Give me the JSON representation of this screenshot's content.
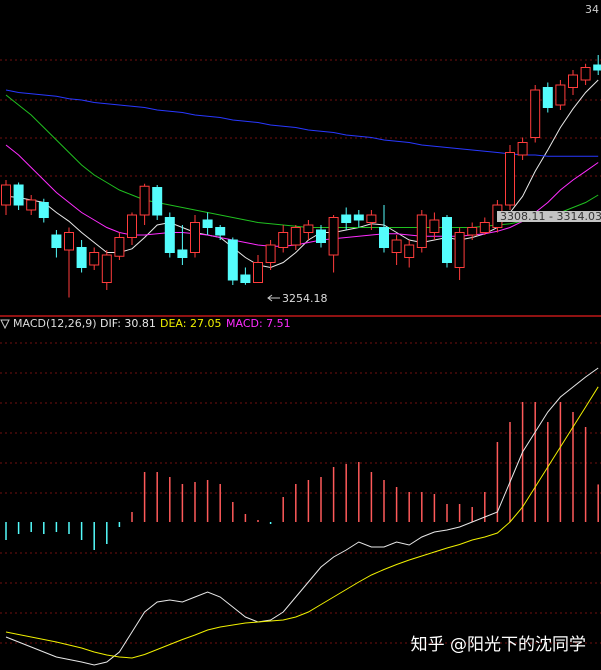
{
  "chart_data": [
    {
      "type": "candlestick",
      "corner_label": "34",
      "low_label": "3254.18",
      "range_label": "3308.11 - 3314.03",
      "ylim": [
        3234,
        3482
      ],
      "up_color": "#ff3c3c",
      "down_color": "#54fcfc",
      "open": [
        3318,
        3334,
        3314,
        3320,
        3294,
        3282,
        3284,
        3270,
        3256,
        3277,
        3292,
        3310,
        3332,
        3308,
        3282,
        3280,
        3306,
        3300,
        3290,
        3262,
        3256,
        3272,
        3284,
        3286,
        3296,
        3298,
        3278,
        3310,
        3310,
        3304,
        3300,
        3280,
        3276,
        3284,
        3296,
        3308,
        3268,
        3294,
        3296,
        3300,
        3318,
        3358,
        3372,
        3412,
        3398,
        3412,
        3418,
        3430
      ],
      "close": [
        3334,
        3318,
        3322,
        3308,
        3284,
        3296,
        3268,
        3280,
        3278,
        3292,
        3310,
        3333,
        3310,
        3280,
        3276,
        3304,
        3300,
        3294,
        3258,
        3256,
        3272,
        3286,
        3296,
        3300,
        3302,
        3288,
        3308,
        3304,
        3306,
        3310,
        3284,
        3290,
        3286,
        3310,
        3306,
        3272,
        3296,
        3300,
        3304,
        3318,
        3360,
        3368,
        3410,
        3396,
        3414,
        3422,
        3428,
        3426
      ],
      "high": [
        3338,
        3336,
        3326,
        3323,
        3298,
        3300,
        3290,
        3284,
        3282,
        3296,
        3312,
        3335,
        3334,
        3312,
        3302,
        3310,
        3312,
        3302,
        3292,
        3268,
        3278,
        3290,
        3302,
        3302,
        3306,
        3302,
        3310,
        3316,
        3314,
        3314,
        3318,
        3294,
        3290,
        3314,
        3312,
        3310,
        3300,
        3304,
        3308,
        3322,
        3366,
        3372,
        3414,
        3416,
        3418,
        3426,
        3431,
        3438
      ],
      "low": [
        3310,
        3314,
        3310,
        3304,
        3276,
        3244,
        3264,
        3266,
        3250,
        3274,
        3286,
        3302,
        3306,
        3276,
        3270,
        3276,
        3294,
        3290,
        3254,
        3254.18,
        3256,
        3266,
        3280,
        3282,
        3290,
        3284,
        3264,
        3298,
        3300,
        3298,
        3280,
        3270,
        3268,
        3280,
        3290,
        3268,
        3258,
        3290,
        3294,
        3296,
        3314,
        3354,
        3368,
        3392,
        3394,
        3406,
        3414,
        3422
      ],
      "series": [
        {
          "color": "#e8e8e8",
          "values": [
            3325,
            3324,
            3322,
            3320,
            3312,
            3305,
            3296,
            3288,
            3280,
            3280,
            3283,
            3292,
            3302,
            3304,
            3300,
            3296,
            3294,
            3292,
            3284,
            3276,
            3270,
            3268,
            3272,
            3280,
            3290,
            3296,
            3296,
            3298,
            3300,
            3303,
            3302,
            3296,
            3290,
            3288,
            3290,
            3292,
            3290,
            3292,
            3295,
            3300,
            3312,
            3325,
            3345,
            3362,
            3380,
            3395,
            3408,
            3418
          ]
        },
        {
          "color": "#ff2cff",
          "values": [
            3366,
            3358,
            3348,
            3338,
            3328,
            3320,
            3312,
            3306,
            3300,
            3296,
            3294,
            3294,
            3295,
            3296,
            3296,
            3295,
            3294,
            3292,
            3290,
            3288,
            3286,
            3285,
            3285,
            3286,
            3288,
            3290,
            3291,
            3292,
            3293,
            3294,
            3295,
            3295,
            3294,
            3293,
            3293,
            3293,
            3293,
            3294,
            3295,
            3297,
            3300,
            3305,
            3312,
            3320,
            3330,
            3338,
            3345,
            3352
          ]
        },
        {
          "color": "#20c020",
          "values": [
            3406,
            3398,
            3390,
            3380,
            3370,
            3360,
            3350,
            3342,
            3336,
            3330,
            3326,
            3322,
            3320,
            3318,
            3316,
            3314,
            3312,
            3310,
            3308,
            3306,
            3304,
            3303,
            3302,
            3301,
            3300,
            3300,
            3300,
            3300,
            3300,
            3300,
            3300,
            3300,
            3300,
            3300,
            3300,
            3300,
            3300,
            3300,
            3301,
            3302,
            3303,
            3305,
            3307,
            3309,
            3312,
            3316,
            3320,
            3326
          ]
        },
        {
          "color": "#2838ff",
          "values": [
            3410,
            3408,
            3407,
            3406,
            3405,
            3403,
            3402,
            3400,
            3399,
            3398,
            3397,
            3396,
            3394,
            3393,
            3392,
            3390,
            3389,
            3388,
            3386,
            3385,
            3384,
            3382,
            3381,
            3380,
            3378,
            3377,
            3376,
            3374,
            3373,
            3372,
            3370,
            3369,
            3368,
            3366,
            3365,
            3364,
            3363,
            3362,
            3361,
            3360,
            3359,
            3358,
            3358,
            3357,
            3357,
            3357,
            3357,
            3357
          ]
        }
      ]
    },
    {
      "type": "macd",
      "title": "MACD(12,26,9)",
      "legend": [
        {
          "text": "DIF: 30.81",
          "color": "#e8e8e8"
        },
        {
          "text": "DEA: 27.05",
          "color": "#f0f000"
        },
        {
          "text": "MACD: 7.51",
          "color": "#ff2cff"
        }
      ],
      "ylim": [
        -29.6,
        40.8
      ],
      "pos_color": "#ff5a5a",
      "neg_color": "#54fcfc",
      "values": [
        -3.6,
        -2.4,
        -2,
        -2.4,
        -2,
        -2.4,
        -3.6,
        -5.6,
        -4.4,
        -1,
        2,
        10,
        10,
        9,
        7.6,
        8,
        8.4,
        7.6,
        4,
        1.6,
        0.4,
        -0.4,
        5,
        7.6,
        8.4,
        9,
        11,
        11.6,
        12,
        10,
        8.4,
        7,
        6,
        6,
        5.6,
        3.6,
        3.6,
        3,
        6,
        16,
        20,
        24,
        24,
        20,
        24,
        22,
        19,
        7.51
      ],
      "series": [
        {
          "color": "#e8e8e8",
          "values": [
            -23,
            -24,
            -25,
            -26,
            -27,
            -27.5,
            -28,
            -28.6,
            -28,
            -26,
            -22,
            -18,
            -16,
            -15.6,
            -16,
            -15,
            -14,
            -15,
            -17,
            -19,
            -20,
            -19.6,
            -18,
            -15,
            -12,
            -9,
            -7,
            -5.6,
            -4,
            -5,
            -5,
            -4,
            -4.6,
            -3,
            -2,
            -1.6,
            -1,
            0,
            1,
            2,
            8,
            14,
            18,
            22,
            25,
            27,
            29,
            30.81
          ]
        },
        {
          "color": "#f0f000",
          "values": [
            -22,
            -22.5,
            -23,
            -23.5,
            -24,
            -24.6,
            -25.2,
            -26,
            -26.6,
            -27,
            -27.2,
            -26.5,
            -25.5,
            -24.5,
            -23.5,
            -22.6,
            -21.6,
            -21,
            -20.6,
            -20.2,
            -20,
            -19.8,
            -19.6,
            -19,
            -18,
            -16.5,
            -15,
            -13.5,
            -12,
            -10.6,
            -9.5,
            -8.5,
            -7.6,
            -6.8,
            -6,
            -5.2,
            -4.5,
            -3.6,
            -3,
            -2.2,
            0,
            3,
            7,
            11,
            15,
            19,
            23,
            27.05
          ]
        }
      ]
    }
  ],
  "watermark": "知乎 @阳光下的沈同学"
}
